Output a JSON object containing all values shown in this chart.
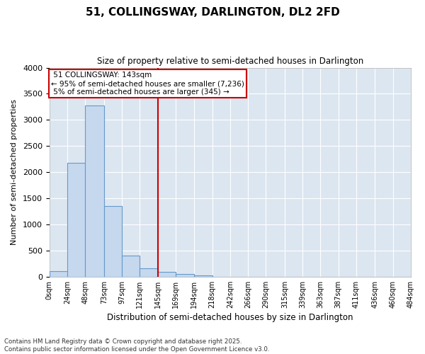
{
  "title1": "51, COLLINGSWAY, DARLINGTON, DL2 2FD",
  "title2": "Size of property relative to semi-detached houses in Darlington",
  "xlabel": "Distribution of semi-detached houses by size in Darlington",
  "ylabel": "Number of semi-detached properties",
  "bin_labels": [
    "0sqm",
    "24sqm",
    "48sqm",
    "73sqm",
    "97sqm",
    "121sqm",
    "145sqm",
    "169sqm",
    "194sqm",
    "218sqm",
    "242sqm",
    "266sqm",
    "290sqm",
    "315sqm",
    "339sqm",
    "363sqm",
    "387sqm",
    "411sqm",
    "436sqm",
    "460sqm",
    "484sqm"
  ],
  "bin_edges": [
    0,
    24,
    48,
    73,
    97,
    121,
    145,
    169,
    194,
    218,
    242,
    266,
    290,
    315,
    339,
    363,
    387,
    411,
    436,
    460,
    484
  ],
  "bar_heights": [
    110,
    2180,
    3280,
    1350,
    400,
    160,
    90,
    55,
    30,
    0,
    0,
    0,
    0,
    0,
    0,
    0,
    0,
    0,
    0,
    0
  ],
  "bar_color": "#c5d8ee",
  "bar_edge_color": "#6699cc",
  "property_line_x": 145,
  "property_sqm": 143,
  "pct_smaller": 95,
  "count_smaller": 7236,
  "pct_larger": 5,
  "count_larger": 345,
  "annotation_label": "51 COLLINGSWAY: 143sqm",
  "vline_color": "#cc0000",
  "box_edge_color": "#cc0000",
  "background_color": "#dce6f1",
  "grid_color": "#ffffff",
  "ylim": [
    0,
    4000
  ],
  "yticks": [
    0,
    500,
    1000,
    1500,
    2000,
    2500,
    3000,
    3500,
    4000
  ],
  "footer1": "Contains HM Land Registry data © Crown copyright and database right 2025.",
  "footer2": "Contains public sector information licensed under the Open Government Licence v3.0."
}
